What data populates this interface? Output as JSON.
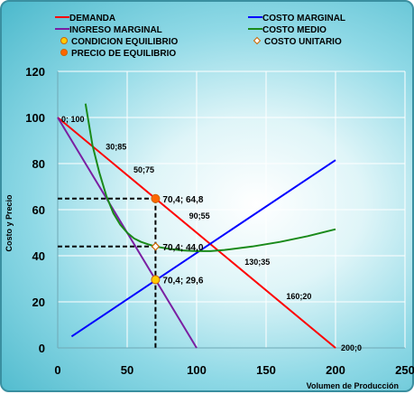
{
  "chart_data": {
    "type": "line",
    "xlabel": "Volumen de Producción",
    "ylabel": "Costo y Precio",
    "xlim": [
      0,
      250
    ],
    "ylim": [
      0,
      120
    ],
    "x_ticks": [
      0,
      50,
      100,
      150,
      200,
      250
    ],
    "y_ticks": [
      0,
      20,
      40,
      60,
      80,
      100,
      120
    ],
    "grid": true,
    "legend_position": "top",
    "legend": [
      {
        "name": "DEMANDA",
        "kind": "line",
        "color": "#ff0000"
      },
      {
        "name": "COSTO MARGINAL",
        "kind": "line",
        "color": "#0000ff"
      },
      {
        "name": "INGRESO MARGINAL",
        "kind": "line",
        "color": "#7a1fa2"
      },
      {
        "name": "COSTO MEDIO",
        "kind": "line",
        "color": "#1a8a1a"
      },
      {
        "name": "CONDICION EQUILIBRIO",
        "kind": "marker",
        "color": "#ffcc00"
      },
      {
        "name": "COSTO UNITARIO",
        "kind": "diamond",
        "color": "#ffffff"
      },
      {
        "name": "PRECIO DE EQUILIBRIO",
        "kind": "marker",
        "color": "#ff6600"
      }
    ],
    "series": [
      {
        "name": "DEMANDA",
        "color": "#ff0000",
        "points": [
          [
            0,
            100
          ],
          [
            200,
            0
          ]
        ]
      },
      {
        "name": "COSTO MARGINAL",
        "color": "#0000ff",
        "points": [
          [
            10,
            5
          ],
          [
            200,
            81.5
          ]
        ]
      },
      {
        "name": "INGRESO MARGINAL",
        "color": "#7a1fa2",
        "points": [
          [
            0,
            100
          ],
          [
            100,
            0
          ]
        ]
      },
      {
        "name": "COSTO MEDIO",
        "color": "#1a8a1a",
        "points": [
          [
            20,
            106
          ],
          [
            25,
            88
          ],
          [
            30,
            76
          ],
          [
            35,
            66
          ],
          [
            40,
            58.5
          ],
          [
            45,
            53.5
          ],
          [
            50,
            50
          ],
          [
            55,
            47.5
          ],
          [
            60,
            46
          ],
          [
            65,
            45
          ],
          [
            70.4,
            44
          ],
          [
            80,
            43
          ],
          [
            90,
            42.3
          ],
          [
            100,
            42
          ],
          [
            110,
            42
          ],
          [
            120,
            42.5
          ],
          [
            140,
            44
          ],
          [
            160,
            46
          ],
          [
            180,
            48.5
          ],
          [
            200,
            51.5
          ]
        ]
      }
    ],
    "demand_labels": [
      {
        "x": 0,
        "y": 100,
        "text": "0; 100"
      },
      {
        "x": 30,
        "y": 85,
        "text": "30;85"
      },
      {
        "x": 50,
        "y": 75,
        "text": "50;75"
      },
      {
        "x": 90,
        "y": 55,
        "text": "90;55"
      },
      {
        "x": 130,
        "y": 35,
        "text": "130;35"
      },
      {
        "x": 160,
        "y": 20,
        "text": "160;20"
      },
      {
        "x": 200,
        "y": 0,
        "text": "200;0"
      }
    ],
    "key_points": [
      {
        "x": 70.4,
        "y": 64.8,
        "text": "70,4; 64,8",
        "kind": "precio"
      },
      {
        "x": 70.4,
        "y": 44.0,
        "text": "70,4; 44,0",
        "kind": "costo"
      },
      {
        "x": 70.4,
        "y": 29.6,
        "text": "70,4; 29,6",
        "kind": "equilibrio"
      }
    ]
  }
}
